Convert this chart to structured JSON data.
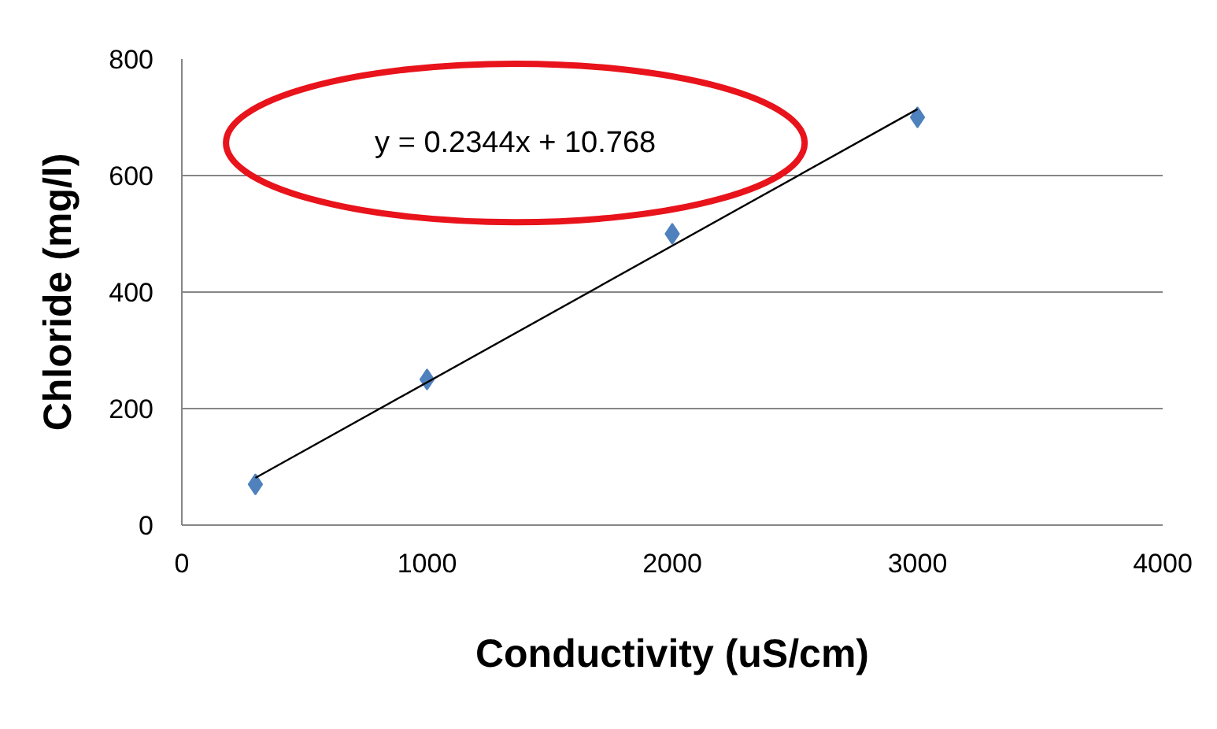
{
  "chart_data": {
    "type": "scatter",
    "xlabel": "Conductivity (uS/cm)",
    "ylabel": "Chloride (mg/l)",
    "xlim": [
      0,
      4000
    ],
    "xticks": [
      0,
      1000,
      2000,
      3000,
      4000
    ],
    "ylim": [
      0,
      800
    ],
    "yticks": [
      0,
      200,
      400,
      600,
      800
    ],
    "grid": "y",
    "marker": "diamond",
    "series": [
      {
        "color": "#4f81bd",
        "x": [
          300,
          1000,
          2000,
          3000
        ],
        "values": [
          70,
          250,
          500,
          700
        ]
      },
      {
        "type": "line",
        "color": "#000000",
        "x": [
          300,
          3000
        ],
        "values": [
          81,
          714
        ],
        "marker": "none",
        "line_style": "solid"
      }
    ],
    "annotations": [
      "y = 0.2344x + 10.768"
    ]
  }
}
